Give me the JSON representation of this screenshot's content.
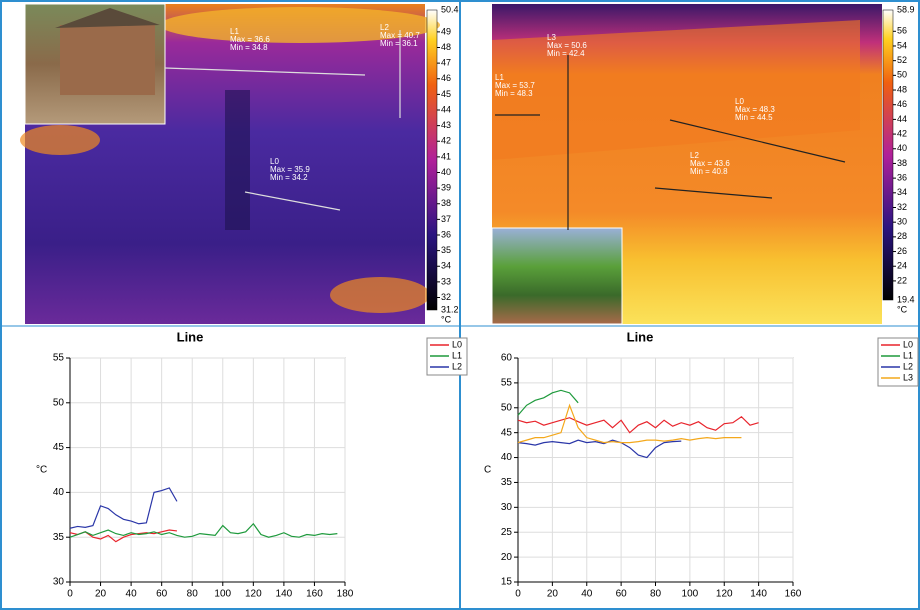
{
  "thermal_images": [
    {
      "labels": [
        [
          "L1",
          "Max = 36.6",
          "Min = 34.8"
        ],
        [
          "L2",
          "Max = 40.7",
          "Min = 36.1"
        ],
        [
          "L0",
          "Max = 35.9",
          "Min = 34.2"
        ]
      ],
      "scale": {
        "max": 50.4,
        "min": 31.2,
        "ticks": [
          49,
          48,
          47,
          46,
          45,
          44,
          43,
          42,
          41,
          40,
          39,
          38,
          37,
          36,
          35,
          34,
          33,
          32
        ],
        "unit": "°C"
      }
    },
    {
      "labels": [
        [
          "L3",
          "Max = 50.6",
          "Min = 42.4"
        ],
        [
          "L1",
          "Max = 53.7",
          "Min = 48.3"
        ],
        [
          "L0",
          "Max = 48.3",
          "Min = 44.5"
        ],
        [
          "L2",
          "Max = 43.6",
          "Min = 40.8"
        ]
      ],
      "scale": {
        "max": 58.9,
        "min": 19.4,
        "ticks": [
          56,
          54,
          52,
          50,
          48,
          46,
          44,
          42,
          40,
          38,
          36,
          34,
          32,
          30,
          28,
          26,
          24,
          22
        ],
        "unit": "°C"
      }
    }
  ],
  "chart_data": [
    {
      "type": "line",
      "title": "Line",
      "y_label": "°C",
      "xlim": [
        0,
        180
      ],
      "xticks": [
        0,
        20,
        40,
        60,
        80,
        100,
        120,
        140,
        160,
        180
      ],
      "ylim": [
        30,
        55
      ],
      "yticks": [
        30,
        35,
        40,
        45,
        50,
        55
      ],
      "grid": true,
      "legend": "top-right",
      "series": [
        {
          "name": "L0",
          "color": "#e8242c",
          "x": [
            0,
            5,
            10,
            15,
            20,
            25,
            30,
            35,
            40,
            45,
            50,
            55,
            60,
            65,
            70
          ],
          "values": [
            35.5,
            35.3,
            35.6,
            35.0,
            34.8,
            35.2,
            34.5,
            35.0,
            35.3,
            35.4,
            35.5,
            35.4,
            35.6,
            35.8,
            35.7
          ]
        },
        {
          "name": "L1",
          "color": "#1e9a3c",
          "x": [
            0,
            5,
            10,
            15,
            20,
            25,
            30,
            35,
            40,
            45,
            50,
            55,
            60,
            65,
            70,
            75,
            80,
            85,
            90,
            95,
            100,
            105,
            110,
            115,
            120,
            125,
            130,
            135,
            140,
            145,
            150,
            155,
            160,
            165,
            170,
            175
          ],
          "values": [
            35.0,
            35.3,
            35.6,
            35.2,
            35.5,
            35.8,
            35.4,
            35.2,
            35.5,
            35.3,
            35.4,
            35.6,
            35.3,
            35.5,
            35.2,
            35.0,
            35.1,
            35.4,
            35.3,
            35.2,
            36.3,
            35.5,
            35.4,
            35.6,
            36.5,
            35.3,
            35.0,
            35.2,
            35.5,
            35.1,
            35.0,
            35.3,
            35.2,
            35.4,
            35.3,
            35.4
          ]
        },
        {
          "name": "L2",
          "color": "#2a36a8",
          "x": [
            0,
            5,
            10,
            15,
            20,
            25,
            30,
            35,
            40,
            45,
            50,
            55,
            60,
            65,
            70
          ],
          "values": [
            36.0,
            36.2,
            36.1,
            36.3,
            38.5,
            38.2,
            37.5,
            37.0,
            36.8,
            36.5,
            36.6,
            40.0,
            40.2,
            40.5,
            39.0
          ]
        }
      ]
    },
    {
      "type": "line",
      "title": "Line",
      "y_label": "C",
      "xlim": [
        0,
        160
      ],
      "xticks": [
        0,
        20,
        40,
        60,
        80,
        100,
        120,
        140,
        160
      ],
      "ylim": [
        15,
        60
      ],
      "yticks": [
        15,
        20,
        25,
        30,
        35,
        40,
        45,
        50,
        55,
        60
      ],
      "grid": true,
      "legend": "top-right",
      "series": [
        {
          "name": "L0",
          "color": "#e8242c",
          "x": [
            0,
            5,
            10,
            15,
            20,
            25,
            30,
            35,
            40,
            45,
            50,
            55,
            60,
            65,
            70,
            75,
            80,
            85,
            90,
            95,
            100,
            105,
            110,
            115,
            120,
            125,
            130,
            135,
            140
          ],
          "values": [
            47.5,
            47.0,
            47.3,
            46.5,
            47.0,
            47.5,
            48.0,
            47.2,
            46.5,
            47.0,
            47.5,
            46.0,
            47.5,
            45.0,
            46.5,
            47.2,
            46.0,
            47.5,
            46.3,
            47.0,
            46.5,
            47.2,
            46.0,
            45.5,
            46.8,
            47.0,
            48.2,
            46.5,
            47.0
          ]
        },
        {
          "name": "L1",
          "color": "#1e9a3c",
          "x": [
            0,
            5,
            10,
            15,
            20,
            25,
            30,
            35
          ],
          "values": [
            48.5,
            50.5,
            51.5,
            52.0,
            53.0,
            53.5,
            53.0,
            51.0
          ]
        },
        {
          "name": "L2",
          "color": "#2a36a8",
          "x": [
            0,
            5,
            10,
            15,
            20,
            25,
            30,
            35,
            40,
            45,
            50,
            55,
            60,
            65,
            70,
            75,
            80,
            85,
            90,
            95
          ],
          "values": [
            43.0,
            42.8,
            42.5,
            43.0,
            43.2,
            43.0,
            42.8,
            43.5,
            43.0,
            43.2,
            42.8,
            43.5,
            43.0,
            42.0,
            40.5,
            40.0,
            42.0,
            43.0,
            43.2,
            43.3
          ]
        },
        {
          "name": "L3",
          "color": "#f4a81c",
          "x": [
            0,
            5,
            10,
            15,
            20,
            25,
            30,
            35,
            40,
            45,
            50,
            55,
            60,
            65,
            70,
            75,
            80,
            85,
            90,
            95,
            100,
            105,
            110,
            115,
            120,
            125,
            130
          ],
          "values": [
            43.0,
            43.5,
            44.0,
            44.0,
            44.5,
            45.0,
            50.5,
            46.0,
            44.0,
            43.5,
            43.0,
            43.2,
            43.0,
            43.0,
            43.2,
            43.5,
            43.5,
            43.3,
            43.5,
            43.8,
            43.5,
            43.8,
            44.0,
            43.8,
            44.0,
            44.0,
            44.0
          ]
        }
      ]
    }
  ]
}
